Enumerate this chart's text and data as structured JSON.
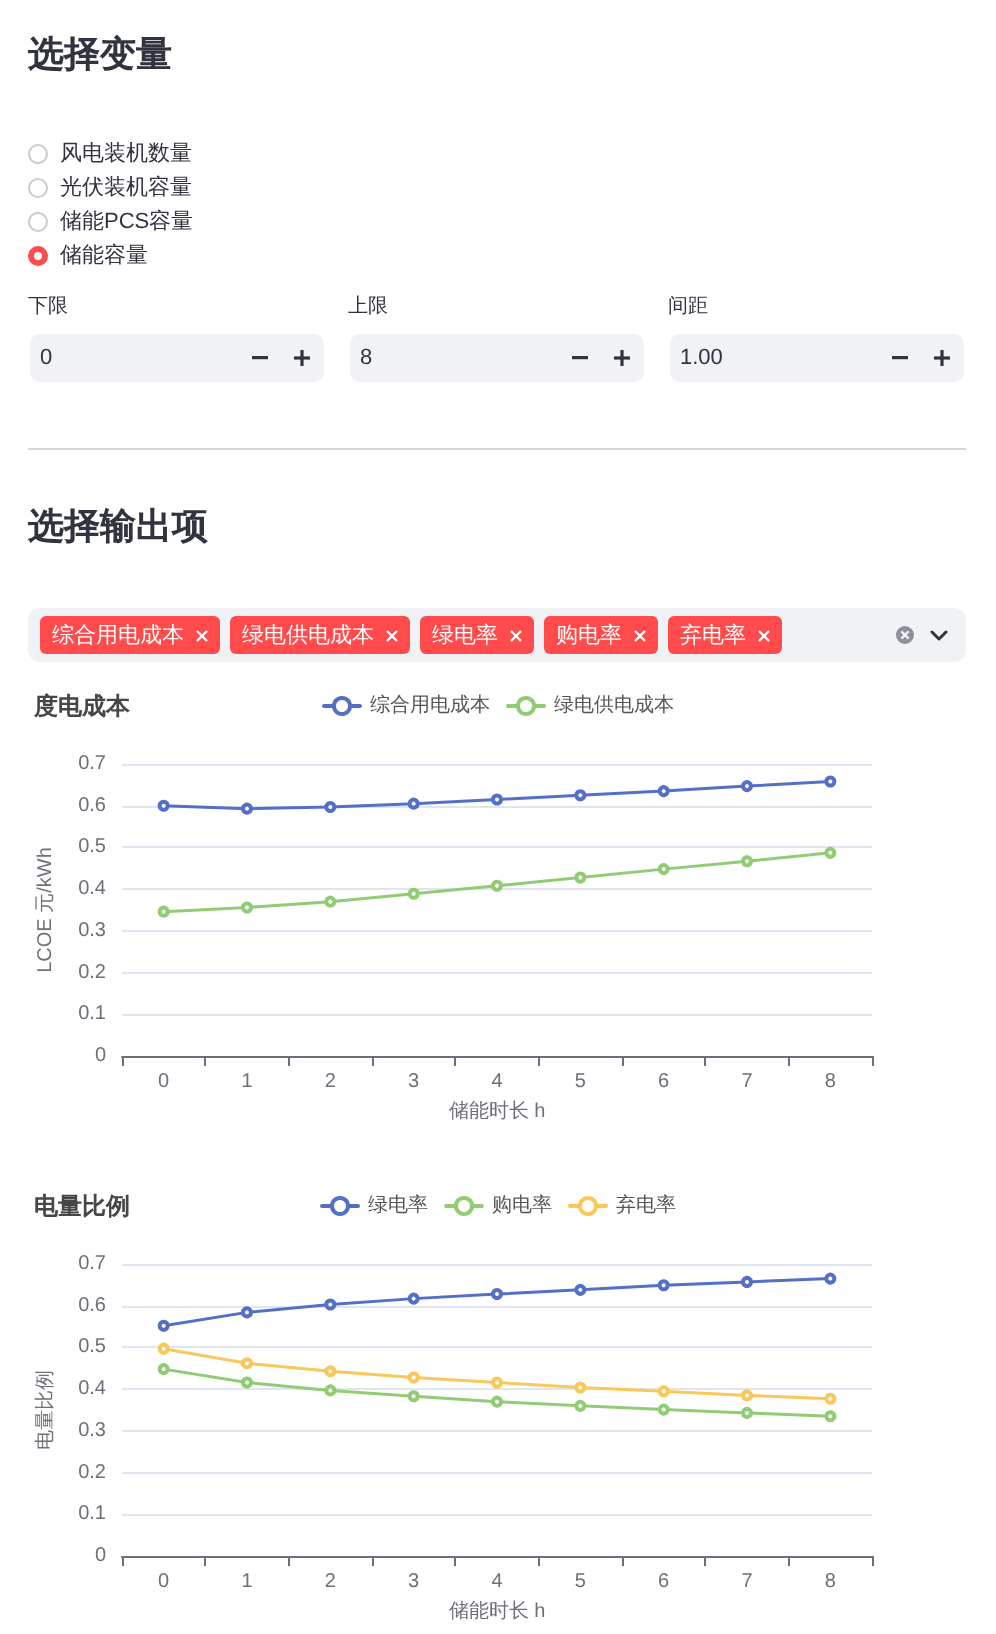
{
  "chart_data": [
    {
      "type": "other",
      "title": "选择变量",
      "categories": [
        "风电装机数量",
        "光伏装机容量",
        "储能PCS容量",
        "储能容量"
      ],
      "colors": [
        null,
        null,
        null,
        "#ff4b4b"
      ],
      "annotations": [
        "下限",
        "0",
        "上限",
        "8",
        "间距",
        "1.00"
      ]
    },
    {
      "type": "other",
      "title": "选择输出项",
      "categories": [
        "综合用电成本",
        "绿电供电成本",
        "绿电率",
        "购电率",
        "弃电率"
      ],
      "color": "#ff4b4b"
    },
    {
      "type": "line",
      "title": "度电成本",
      "xlabel": "储能时长 h",
      "ylabel": "LCOE 元/kWh",
      "categories": [
        "0",
        "1",
        "2",
        "3",
        "4",
        "5",
        "6",
        "7",
        "8"
      ],
      "series": [
        {
          "name": "综合用电成本",
          "color": "#5470c6",
          "values": [
            0.6,
            0.593,
            0.597,
            0.605,
            0.615,
            0.625,
            0.635,
            0.647,
            0.658
          ]
        },
        {
          "name": "绿电供电成本",
          "color": "#91cc75",
          "values": [
            0.346,
            0.356,
            0.37,
            0.389,
            0.408,
            0.428,
            0.448,
            0.467,
            0.487
          ]
        }
      ],
      "ylim": [
        0,
        0.7
      ],
      "yticks": [
        0,
        0.1,
        0.2,
        0.3,
        0.4,
        0.5,
        0.6,
        0.7
      ],
      "grid": "y",
      "legend": "top",
      "marker": "circle",
      "line_style": "solid"
    },
    {
      "type": "line",
      "title": "电量比例",
      "xlabel": "储能时长 h",
      "ylabel": "电量比例",
      "categories": [
        "0",
        "1",
        "2",
        "3",
        "4",
        "5",
        "6",
        "7",
        "8"
      ],
      "series": [
        {
          "name": "绿电率",
          "color": "#5470c6",
          "values": [
            0.552,
            0.584,
            0.603,
            0.617,
            0.628,
            0.638,
            0.649,
            0.657,
            0.665
          ]
        },
        {
          "name": "购电率",
          "color": "#91cc75",
          "values": [
            0.448,
            0.416,
            0.397,
            0.383,
            0.37,
            0.36,
            0.351,
            0.343,
            0.335
          ]
        },
        {
          "name": "弃电率",
          "color": "#fac858",
          "values": [
            0.497,
            0.462,
            0.443,
            0.428,
            0.416,
            0.404,
            0.395,
            0.385,
            0.377
          ]
        }
      ],
      "ylim": [
        0,
        0.7
      ],
      "yticks": [
        0,
        0.1,
        0.2,
        0.3,
        0.4,
        0.5,
        0.6,
        0.7
      ],
      "grid": "y",
      "legend": "top",
      "marker": "circle",
      "line_style": "solid"
    }
  ]
}
